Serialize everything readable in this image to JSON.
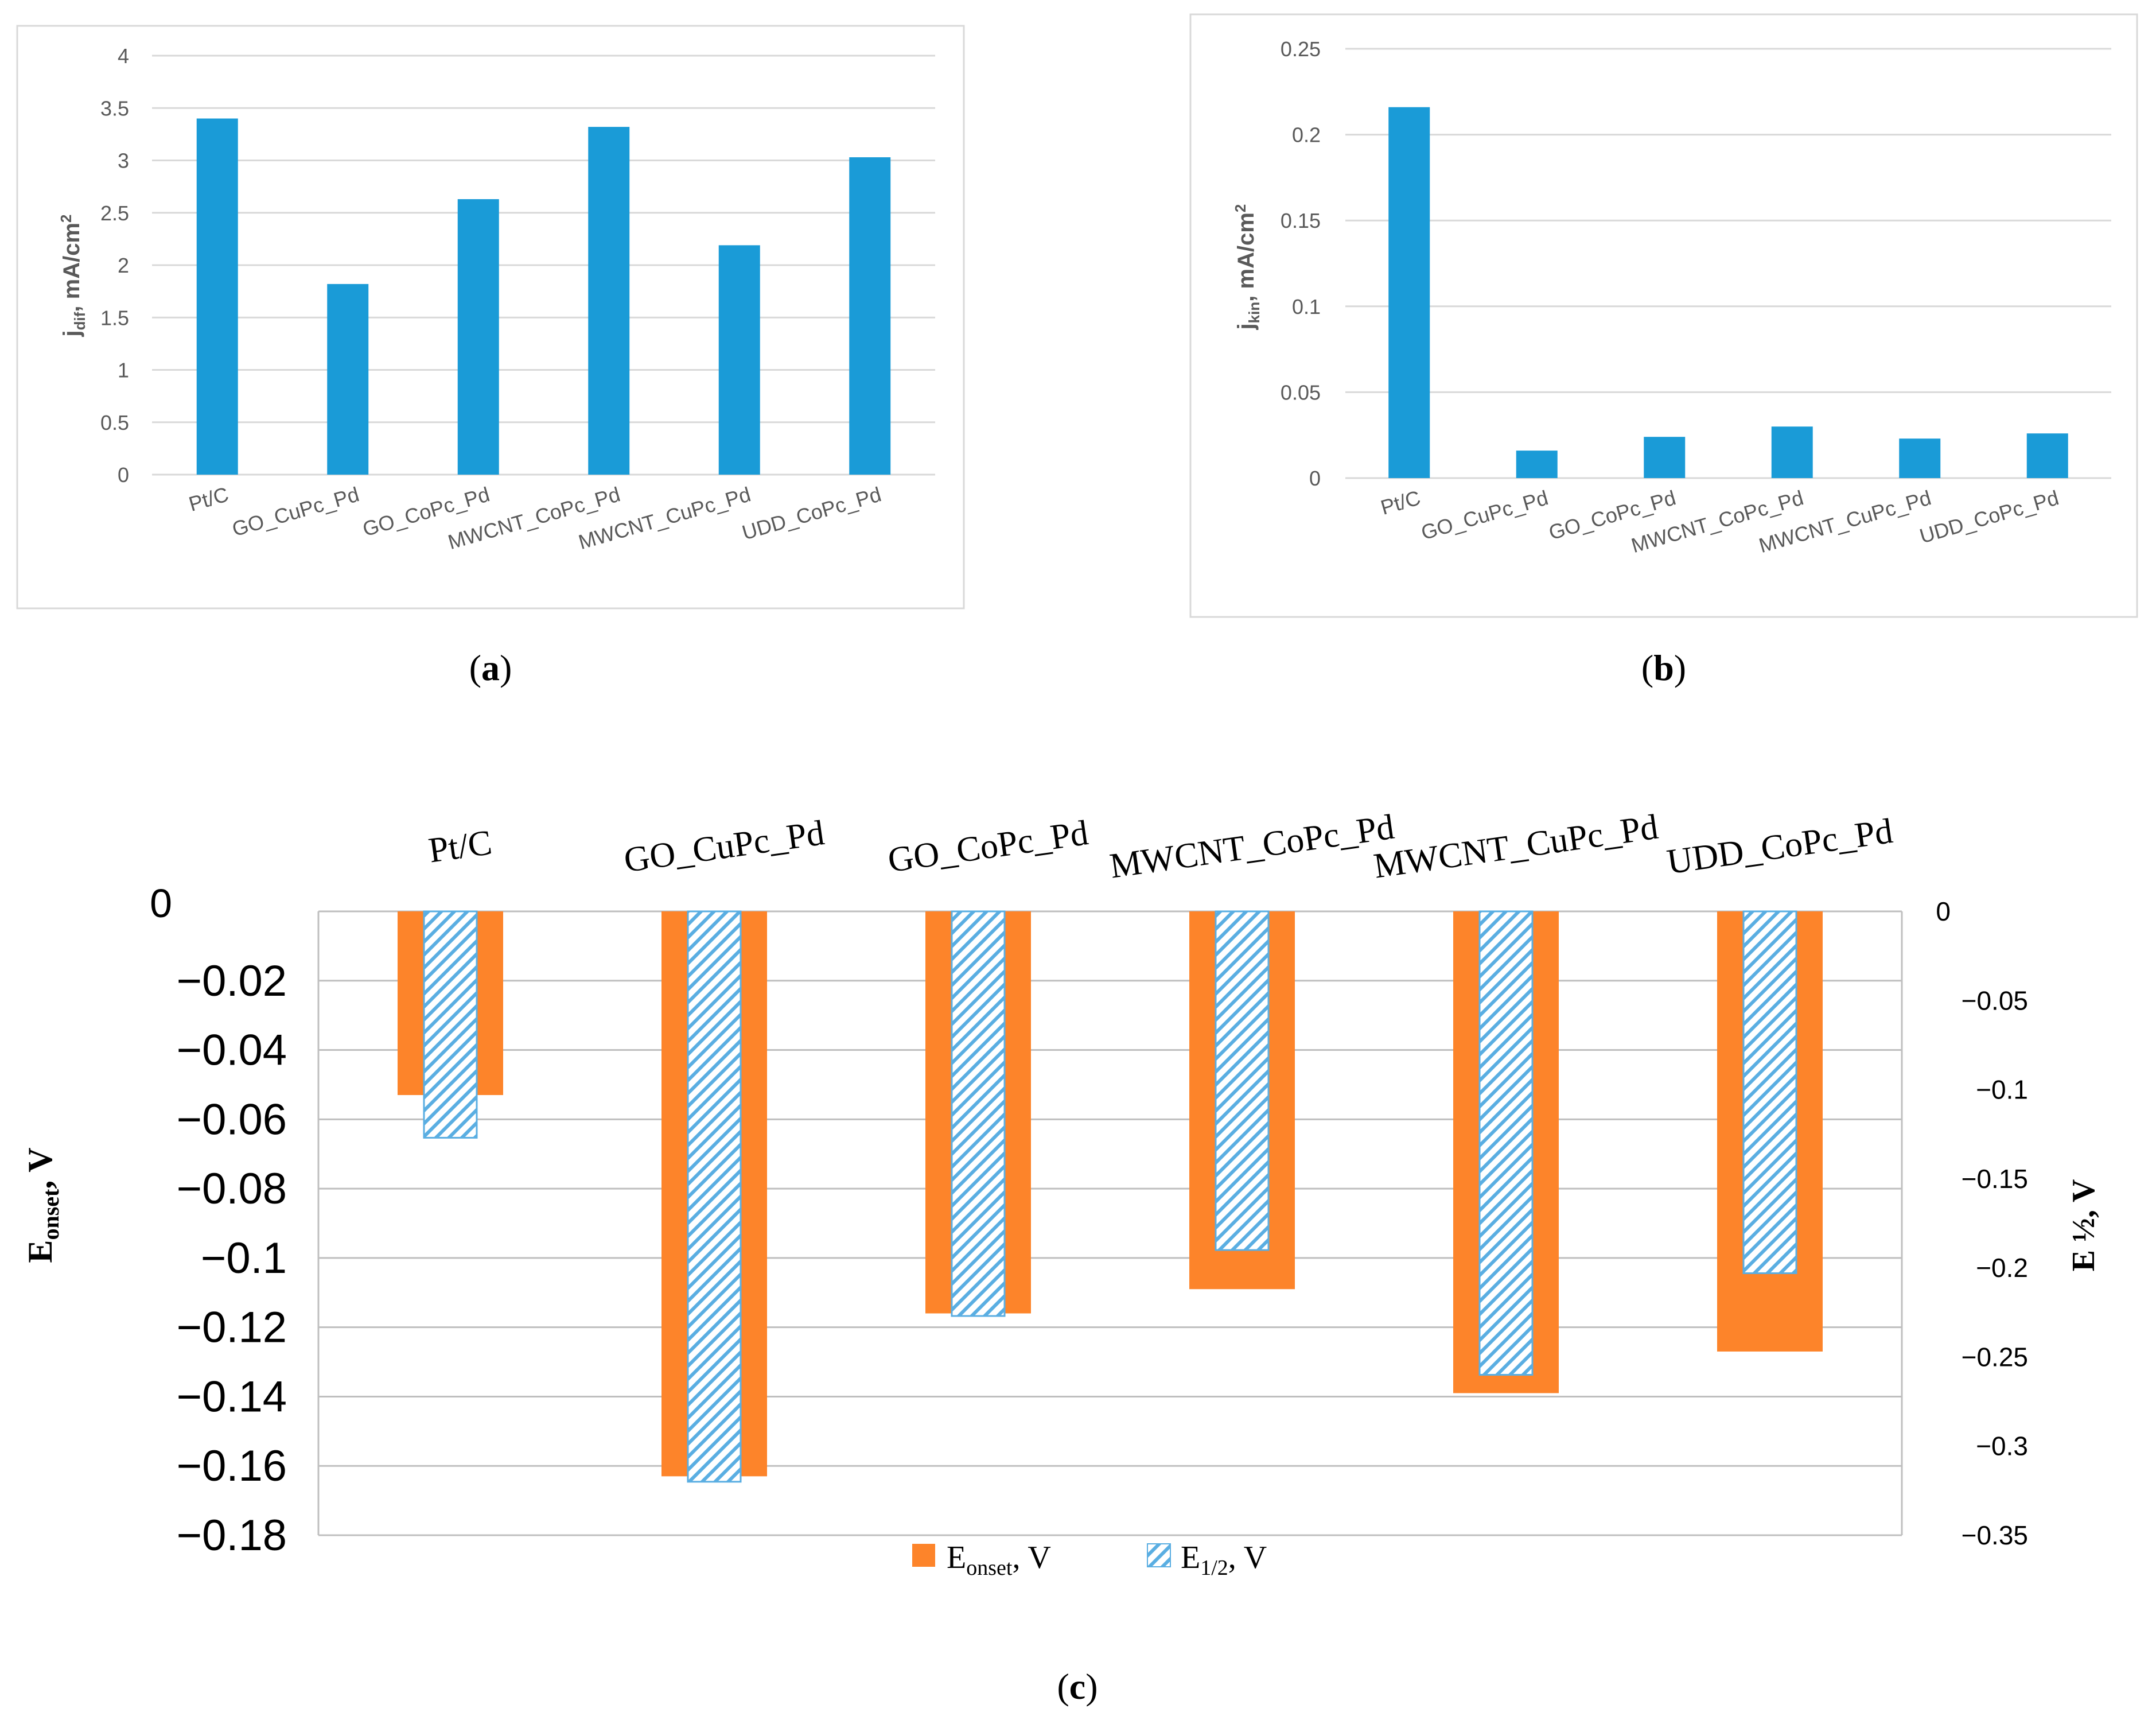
{
  "colors": {
    "bar_blue": "#1a9bd7",
    "bar_orange": "#fd842a",
    "hatch_blue": "#5aaee2",
    "grid": "#d9d9d9",
    "grid_c": "#bfbfbf",
    "text_gray": "#595959",
    "frame": "#d9d9d9"
  },
  "panel_labels": {
    "a": "a",
    "b": "b",
    "c": "c"
  },
  "chart_data": [
    {
      "id": "a",
      "type": "bar",
      "categories": [
        "Pt/C",
        "GO_CuPc_Pd",
        "GO_CoPc_Pd",
        "MWCNT_CoPc_Pd",
        "MWCNT_CuPc_Pd",
        "UDD_CoPc_Pd"
      ],
      "values": [
        3.4,
        1.82,
        2.63,
        3.32,
        2.19,
        3.03
      ],
      "ylabel": {
        "j": "j",
        "sub": "dif",
        "rest": ", mA/cm",
        "sup": "2"
      },
      "yticks": [
        "0",
        "0.5",
        "1",
        "1.5",
        "2",
        "2.5",
        "3",
        "3.5",
        "4"
      ],
      "ylim": [
        0,
        4
      ]
    },
    {
      "id": "b",
      "type": "bar",
      "categories": [
        "Pt/C",
        "GO_CuPc_Pd",
        "GO_CoPc_Pd",
        "MWCNT_CoPc_Pd",
        "MWCNT_CuPc_Pd",
        "UDD_CoPc_Pd"
      ],
      "values": [
        0.216,
        0.016,
        0.024,
        0.03,
        0.023,
        0.026
      ],
      "ylabel": {
        "j": "j",
        "sub": "kin",
        "rest": ", mA/cm",
        "sup": "2"
      },
      "yticks": [
        "0",
        "0.05",
        "0.1",
        "0.15",
        "0.2",
        "0.25"
      ],
      "ylim": [
        0,
        0.25
      ]
    },
    {
      "id": "c",
      "type": "bar",
      "categories": [
        "Pt/C",
        "GO_CuPc_Pd",
        "GO_CoPc_Pd",
        "MWCNT_CoPc_Pd",
        "MWCNT_CuPc_Pd",
        "UDD_CoPc_Pd"
      ],
      "series": [
        {
          "name": "E_onset, V",
          "axis": "left",
          "values": [
            -0.053,
            -0.163,
            -0.116,
            -0.109,
            -0.139,
            -0.127
          ]
        },
        {
          "name": "E_1/2, V",
          "axis": "right",
          "values": [
            -0.127,
            -0.32,
            -0.227,
            -0.19,
            -0.26,
            -0.203
          ]
        }
      ],
      "left_axis": {
        "label": {
          "main": "E",
          "sub": "onset",
          "rest": ", V"
        },
        "yticks": [
          "0",
          "−0.02",
          "−0.04",
          "−0.06",
          "−0.08",
          "−0.1",
          "−0.12",
          "−0.14",
          "−0.16",
          "−0.18"
        ],
        "ylim": [
          -0.18,
          0
        ]
      },
      "right_axis": {
        "label": "E ½, V",
        "yticks": [
          "0",
          "−0.05",
          "−0.1",
          "−0.15",
          "−0.2",
          "−0.25",
          "−0.3",
          "−0.35"
        ],
        "ylim": [
          -0.35,
          0
        ]
      },
      "legend": [
        {
          "main": "E",
          "sub": "onset",
          "rest": ", V"
        },
        {
          "main": "E",
          "sub": "1/2",
          "rest": ", V"
        }
      ],
      "legend_position": "bottom-center"
    }
  ]
}
